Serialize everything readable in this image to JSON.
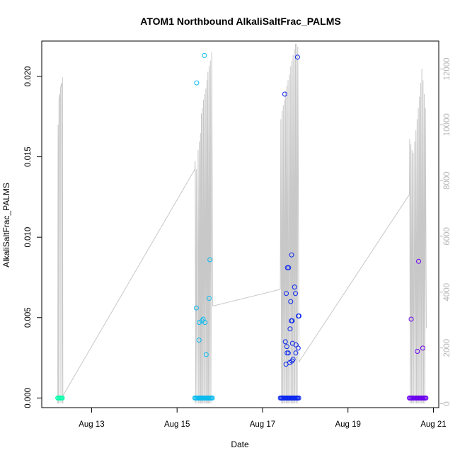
{
  "chart_data": {
    "type": "scatter",
    "title": "ATOM1 Northbound AlkaliSaltFrac_PALMS",
    "xlabel": "Date",
    "ylabel": "AlkaliSaltFrac_PALMS",
    "xlim": [
      "2016-08-11T20:00",
      "2016-08-21T03:00"
    ],
    "ylim": [
      -0.0006,
      0.0222
    ],
    "y2lim": [
      -140,
      13000
    ],
    "x_ticks": [
      {
        "label": "Aug 13",
        "value": "2016-08-13T00:00"
      },
      {
        "label": "Aug 15",
        "value": "2016-08-15T00:00"
      },
      {
        "label": "Aug 17",
        "value": "2016-08-17T00:00"
      },
      {
        "label": "Aug 19",
        "value": "2016-08-19T00:00"
      },
      {
        "label": "Aug 21",
        "value": "2016-08-21T00:00"
      }
    ],
    "y_ticks": [
      {
        "label": "0.000",
        "value": 0.0
      },
      {
        "label": "0.005",
        "value": 0.005
      },
      {
        "label": "0.010",
        "value": 0.01
      },
      {
        "label": "0.015",
        "value": 0.015
      },
      {
        "label": "0.020",
        "value": 0.02
      }
    ],
    "y2_ticks": [
      {
        "label": "0",
        "value": 0
      },
      {
        "label": "2000",
        "value": 2000
      },
      {
        "label": "4000",
        "value": 4000
      },
      {
        "label": "6000",
        "value": 6000
      },
      {
        "label": "8000",
        "value": 8000
      },
      {
        "label": "10000",
        "value": 10000
      },
      {
        "label": "12000",
        "value": 12000
      }
    ],
    "grid": false,
    "legend": "none",
    "colors": {
      "flight1": "#00ffaa",
      "flight2": "#0abaee",
      "flight3": "#0a26ee",
      "flight4": "#6a00ee",
      "altitude": "#c8c8c8",
      "axis": "#000000",
      "right_axis": "#b8b8b8"
    },
    "flights": [
      {
        "color": "#00ffaa",
        "zero_range": [
          "2016-08-12T05:00",
          "2016-08-12T08:00"
        ],
        "points": []
      },
      {
        "color": "#0abaee",
        "zero_range": [
          "2016-08-15T10:00",
          "2016-08-15T20:00"
        ],
        "points": [
          [
            "2016-08-15T11:00",
            0.0196
          ],
          [
            "2016-08-15T15:20",
            0.0213
          ],
          [
            "2016-08-15T18:30",
            0.0086
          ],
          [
            "2016-08-15T18:00",
            0.0062
          ],
          [
            "2016-08-15T10:50",
            0.0056
          ],
          [
            "2016-08-15T14:40",
            0.0049
          ],
          [
            "2016-08-15T14:00",
            0.0048
          ],
          [
            "2016-08-15T15:40",
            0.0047
          ],
          [
            "2016-08-15T12:30",
            0.0047
          ],
          [
            "2016-08-15T12:20",
            0.0036
          ],
          [
            "2016-08-15T16:20",
            0.0027
          ]
        ]
      },
      {
        "color": "#0a26ee",
        "zero_range": [
          "2016-08-17T10:00",
          "2016-08-17T20:30"
        ],
        "points": [
          [
            "2016-08-17T19:40",
            0.0212
          ],
          [
            "2016-08-17T12:30",
            0.0189
          ],
          [
            "2016-08-17T16:20",
            0.0089
          ],
          [
            "2016-08-17T14:40",
            0.0081
          ],
          [
            "2016-08-17T14:00",
            0.0081
          ],
          [
            "2016-08-17T18:00",
            0.0069
          ],
          [
            "2016-08-17T18:30",
            0.0065
          ],
          [
            "2016-08-17T13:20",
            0.0065
          ],
          [
            "2016-08-17T15:50",
            0.006
          ],
          [
            "2016-08-17T20:30",
            0.0051
          ],
          [
            "2016-08-17T20:10",
            0.0051
          ],
          [
            "2016-08-17T16:40",
            0.0048
          ],
          [
            "2016-08-17T16:10",
            0.0048
          ],
          [
            "2016-08-17T15:30",
            0.0043
          ],
          [
            "2016-08-17T12:50",
            0.0035
          ],
          [
            "2016-08-17T16:50",
            0.0034
          ],
          [
            "2016-08-17T18:50",
            0.0033
          ],
          [
            "2016-08-17T13:40",
            0.0032
          ],
          [
            "2016-08-17T20:00",
            0.0031
          ],
          [
            "2016-08-17T13:50",
            0.0028
          ],
          [
            "2016-08-17T14:30",
            0.0028
          ],
          [
            "2016-08-17T18:40",
            0.0028
          ],
          [
            "2016-08-17T17:10",
            0.0024
          ],
          [
            "2016-08-17T16:30",
            0.0023
          ],
          [
            "2016-08-17T15:20",
            0.0022
          ],
          [
            "2016-08-17T13:10",
            0.0021
          ]
        ]
      },
      {
        "color": "#6a00ee",
        "zero_range": [
          "2016-08-20T10:30",
          "2016-08-20T20:00"
        ],
        "points": [
          [
            "2016-08-20T15:40",
            0.0085
          ],
          [
            "2016-08-20T11:30",
            0.0049
          ],
          [
            "2016-08-20T18:00",
            0.0031
          ],
          [
            "2016-08-20T15:00",
            0.0029
          ]
        ]
      }
    ],
    "altitude_right_axis": [
      [
        "2016-08-12T05:00",
        10
      ],
      [
        "2016-08-12T05:10",
        10000
      ],
      [
        "2016-08-12T05:20",
        10
      ],
      [
        "2016-08-12T05:40",
        10900
      ],
      [
        "2016-08-12T06:10",
        11100
      ],
      [
        "2016-08-12T06:20",
        10
      ],
      [
        "2016-08-12T06:30",
        11300
      ],
      [
        "2016-08-12T07:10",
        11500
      ],
      [
        "2016-08-12T07:20",
        10
      ],
      [
        "2016-08-12T07:40",
        11700
      ],
      [
        "2016-08-12T07:50",
        10
      ],
      [
        "2016-08-12T08:00",
        300
      ],
      [
        "2016-08-15T10:00",
        8400
      ],
      [
        "2016-08-15T10:10",
        8700
      ],
      [
        "2016-08-15T10:30",
        10
      ],
      [
        "2016-08-15T10:50",
        8400
      ],
      [
        "2016-08-15T11:10",
        10
      ],
      [
        "2016-08-15T11:50",
        9100
      ],
      [
        "2016-08-15T12:10",
        10
      ],
      [
        "2016-08-15T12:30",
        9400
      ],
      [
        "2016-08-15T12:50",
        10
      ],
      [
        "2016-08-15T13:10",
        9700
      ],
      [
        "2016-08-15T13:20",
        10
      ],
      [
        "2016-08-15T13:40",
        10400
      ],
      [
        "2016-08-15T13:50",
        10
      ],
      [
        "2016-08-15T14:10",
        10600
      ],
      [
        "2016-08-15T14:30",
        10
      ],
      [
        "2016-08-15T14:50",
        10900
      ],
      [
        "2016-08-15T15:10",
        10
      ],
      [
        "2016-08-15T15:30",
        11100
      ],
      [
        "2016-08-15T15:50",
        10
      ],
      [
        "2016-08-15T16:10",
        11300
      ],
      [
        "2016-08-15T16:30",
        10
      ],
      [
        "2016-08-15T16:50",
        11600
      ],
      [
        "2016-08-15T17:10",
        10
      ],
      [
        "2016-08-15T17:20",
        11900
      ],
      [
        "2016-08-15T17:40",
        10
      ],
      [
        "2016-08-15T18:00",
        12100
      ],
      [
        "2016-08-15T18:20",
        10
      ],
      [
        "2016-08-15T18:40",
        12300
      ],
      [
        "2016-08-15T19:00",
        10
      ],
      [
        "2016-08-15T19:30",
        12600
      ],
      [
        "2016-08-15T20:00",
        3500
      ],
      [
        "2016-08-17T10:00",
        4100
      ],
      [
        "2016-08-17T10:20",
        10200
      ],
      [
        "2016-08-17T10:40",
        10
      ],
      [
        "2016-08-17T11:00",
        10500
      ],
      [
        "2016-08-17T11:20",
        10
      ],
      [
        "2016-08-17T11:40",
        10700
      ],
      [
        "2016-08-17T12:00",
        10
      ],
      [
        "2016-08-17T12:20",
        10900
      ],
      [
        "2016-08-17T12:40",
        10
      ],
      [
        "2016-08-17T13:00",
        11200
      ],
      [
        "2016-08-17T13:20",
        10
      ],
      [
        "2016-08-17T13:40",
        11400
      ],
      [
        "2016-08-17T14:00",
        10
      ],
      [
        "2016-08-17T14:20",
        11600
      ],
      [
        "2016-08-17T14:40",
        10
      ],
      [
        "2016-08-17T15:10",
        11800
      ],
      [
        "2016-08-17T15:30",
        10
      ],
      [
        "2016-08-17T15:50",
        12100
      ],
      [
        "2016-08-17T16:10",
        10
      ],
      [
        "2016-08-17T16:30",
        12300
      ],
      [
        "2016-08-17T16:50",
        10
      ],
      [
        "2016-08-17T17:10",
        12500
      ],
      [
        "2016-08-17T17:30",
        10
      ],
      [
        "2016-08-17T17:50",
        12700
      ],
      [
        "2016-08-17T18:10",
        10
      ],
      [
        "2016-08-17T18:30",
        12900
      ],
      [
        "2016-08-17T18:50",
        10
      ],
      [
        "2016-08-17T19:10",
        12900
      ],
      [
        "2016-08-17T19:30",
        10
      ],
      [
        "2016-08-17T19:50",
        12800
      ],
      [
        "2016-08-17T20:30",
        1500
      ],
      [
        "2016-08-20T10:30",
        7500
      ],
      [
        "2016-08-20T10:40",
        9500
      ],
      [
        "2016-08-20T11:00",
        10
      ],
      [
        "2016-08-20T11:20",
        9300
      ],
      [
        "2016-08-20T11:40",
        10
      ],
      [
        "2016-08-20T12:00",
        9100
      ],
      [
        "2016-08-20T12:20",
        10
      ],
      [
        "2016-08-20T12:40",
        9000
      ],
      [
        "2016-08-20T13:00",
        10
      ],
      [
        "2016-08-20T13:30",
        9400
      ],
      [
        "2016-08-20T13:50",
        10
      ],
      [
        "2016-08-20T14:10",
        9800
      ],
      [
        "2016-08-20T14:30",
        10
      ],
      [
        "2016-08-20T14:50",
        10200
      ],
      [
        "2016-08-20T15:10",
        10
      ],
      [
        "2016-08-20T15:30",
        10600
      ],
      [
        "2016-08-20T15:50",
        10
      ],
      [
        "2016-08-20T16:10",
        11000
      ],
      [
        "2016-08-20T16:30",
        10
      ],
      [
        "2016-08-20T16:50",
        11500
      ],
      [
        "2016-08-20T17:10",
        10
      ],
      [
        "2016-08-20T17:30",
        12000
      ],
      [
        "2016-08-20T17:50",
        10
      ],
      [
        "2016-08-20T18:10",
        11600
      ],
      [
        "2016-08-20T18:30",
        10
      ],
      [
        "2016-08-20T18:50",
        11100
      ],
      [
        "2016-08-20T19:10",
        10
      ],
      [
        "2016-08-20T19:30",
        10600
      ],
      [
        "2016-08-20T20:00",
        2700
      ]
    ]
  }
}
